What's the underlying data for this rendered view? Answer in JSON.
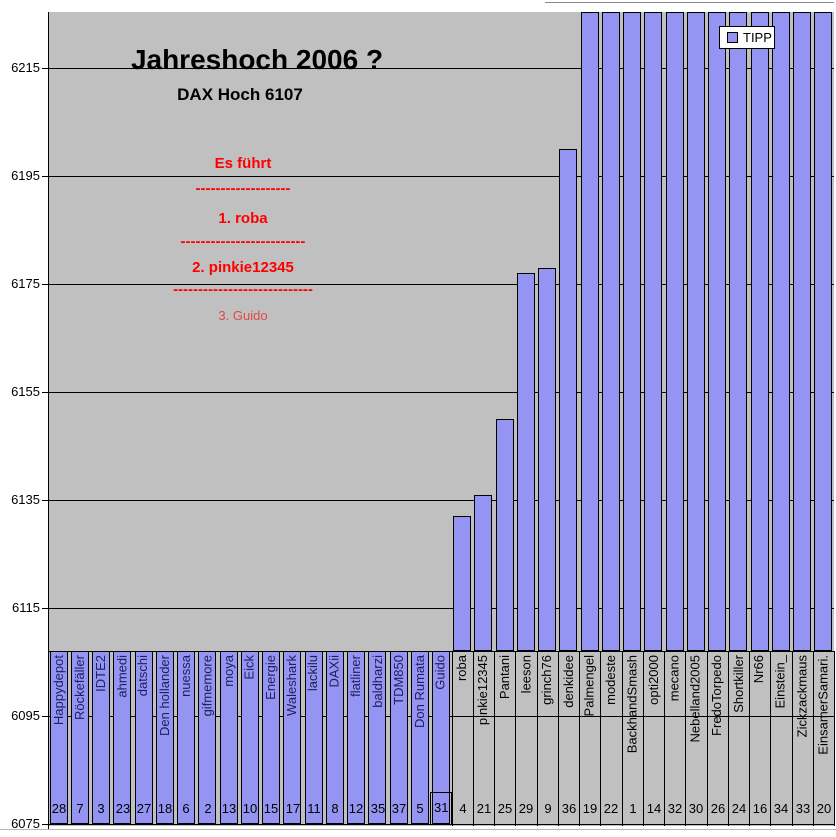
{
  "title": "Jahreshoch 2006 ?",
  "subtitle": "DAX Hoch 6107",
  "legend": {
    "label": "TIPP",
    "position": "top-right"
  },
  "annotation": {
    "heading": "Es führt",
    "divider1": "-------------------",
    "rank1": "1. roba",
    "divider2": "-------------------------",
    "rank2": "2. pinkie12345",
    "divider3": "----------------------------",
    "rank3": "3. Guido",
    "color": "#FF0000",
    "rank3_color": "#E04848"
  },
  "colors": {
    "bar_fill": "#9494F2",
    "bar_border": "#000000",
    "plot_bg": "#C0C0C0",
    "gridline": "#000000",
    "label_on_bar": "#20205E",
    "label_on_bg": "#000000",
    "number_text": "#000000",
    "annotation_red": "#FF0000"
  },
  "chart_data": {
    "type": "bar",
    "title": "Jahreshoch 2006 ?",
    "subtitle": "DAX Hoch 6107",
    "series_name": "TIPP",
    "ylabel": "",
    "xlabel": "",
    "ylim": [
      6075,
      6225
    ],
    "yticks": [
      6215,
      6195,
      6175,
      6155,
      6135,
      6115,
      6095,
      6075
    ],
    "category_axis_crosses_at": 6107,
    "grid": true,
    "legend_position": "top-right",
    "bars": [
      {
        "name": "Happydepot",
        "num": 28,
        "value": null,
        "clip": "below_min"
      },
      {
        "name": "Röckefäller",
        "num": 7,
        "value": null,
        "clip": "below_min"
      },
      {
        "name": "IDTE2",
        "num": 3,
        "value": null,
        "clip": "below_min"
      },
      {
        "name": "ahmedi",
        "num": 23,
        "value": null,
        "clip": "below_min"
      },
      {
        "name": "datschi",
        "num": 27,
        "value": null,
        "clip": "below_min"
      },
      {
        "name": "Den hollander",
        "num": 18,
        "value": null,
        "clip": "below_min"
      },
      {
        "name": "nuessa",
        "num": 6,
        "value": null,
        "clip": "below_min"
      },
      {
        "name": "gifmemore",
        "num": 2,
        "value": null,
        "clip": "below_min"
      },
      {
        "name": "moya",
        "num": 13,
        "value": null,
        "clip": "below_min"
      },
      {
        "name": "Eick",
        "num": 10,
        "value": null,
        "clip": "below_min"
      },
      {
        "name": "Energie",
        "num": 15,
        "value": null,
        "clip": "below_min"
      },
      {
        "name": "Waleshark",
        "num": 17,
        "value": null,
        "clip": "below_min"
      },
      {
        "name": "lackilu",
        "num": 11,
        "value": null,
        "clip": "below_min"
      },
      {
        "name": "DAXii",
        "num": 8,
        "value": null,
        "clip": "below_min"
      },
      {
        "name": "flatliner",
        "num": 12,
        "value": null,
        "clip": "below_min"
      },
      {
        "name": "baldharzi",
        "num": 35,
        "value": null,
        "clip": "below_min"
      },
      {
        "name": "TDM850",
        "num": 37,
        "value": null,
        "clip": "below_min"
      },
      {
        "name": "Don Rumata",
        "num": 5,
        "value": null,
        "clip": "below_min"
      },
      {
        "name": "Guido",
        "num": 31,
        "value": null,
        "clip": "below_min",
        "boxed_number": true
      },
      {
        "name": "roba",
        "num": 4,
        "value": 6132,
        "clip": null
      },
      {
        "name": "pinkie12345",
        "num": 21,
        "value": 6136,
        "clip": null
      },
      {
        "name": "Pantani",
        "num": 25,
        "value": 6150,
        "clip": null
      },
      {
        "name": "leeson",
        "num": 29,
        "value": 6177,
        "clip": null
      },
      {
        "name": "grinch76",
        "num": 9,
        "value": 6178,
        "clip": null
      },
      {
        "name": "denkidee",
        "num": 36,
        "value": 6200,
        "clip": null
      },
      {
        "name": "Palmengel",
        "num": 19,
        "value": null,
        "clip": "above_max"
      },
      {
        "name": "modeste",
        "num": 22,
        "value": null,
        "clip": "above_max"
      },
      {
        "name": "BackhandSmash",
        "num": 1,
        "value": null,
        "clip": "above_max"
      },
      {
        "name": "opti2000",
        "num": 14,
        "value": null,
        "clip": "above_max"
      },
      {
        "name": "mecano",
        "num": 32,
        "value": null,
        "clip": "above_max"
      },
      {
        "name": "Nebelland2005",
        "num": 30,
        "value": null,
        "clip": "above_max"
      },
      {
        "name": "FredoTorpedo",
        "num": 26,
        "value": null,
        "clip": "above_max"
      },
      {
        "name": "Shortkiller",
        "num": 24,
        "value": null,
        "clip": "above_max"
      },
      {
        "name": "Nr66",
        "num": 16,
        "value": null,
        "clip": "above_max"
      },
      {
        "name": "Einstein_",
        "num": 34,
        "value": null,
        "clip": "above_max"
      },
      {
        "name": "Zickzackmaus",
        "num": 33,
        "value": null,
        "clip": "above_max"
      },
      {
        "name": "EinsamerSamari.",
        "num": 20,
        "value": null,
        "clip": "above_max"
      }
    ]
  }
}
